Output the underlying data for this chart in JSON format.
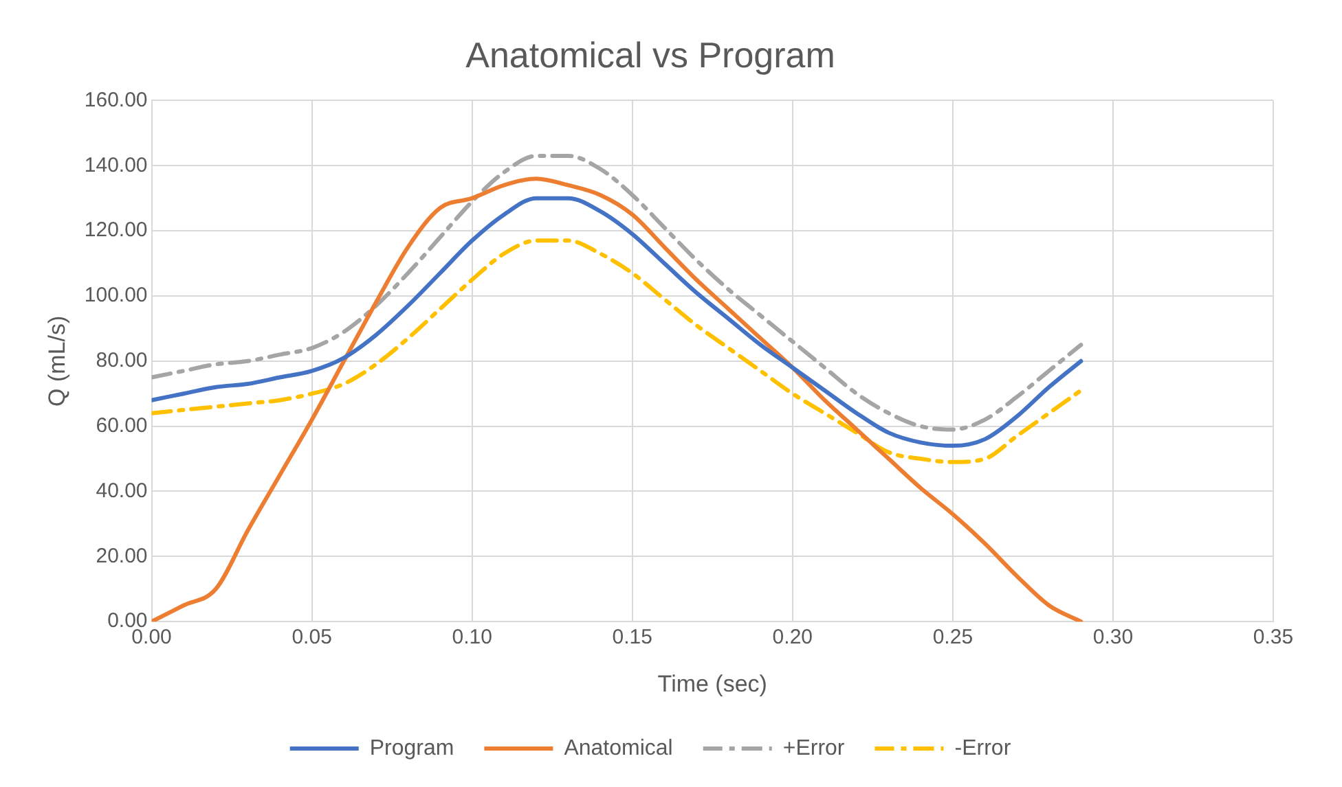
{
  "chart_data": {
    "type": "line",
    "title": "Anatomical vs Program",
    "xlabel": "Time (sec)",
    "ylabel": "Q (mL/s)",
    "x": [
      0,
      0.01,
      0.02,
      0.03,
      0.04,
      0.05,
      0.06,
      0.07,
      0.08,
      0.09,
      0.1,
      0.11,
      0.12,
      0.13,
      0.14,
      0.15,
      0.16,
      0.17,
      0.18,
      0.19,
      0.2,
      0.21,
      0.22,
      0.23,
      0.24,
      0.25,
      0.26,
      0.27,
      0.28,
      0.29
    ],
    "series": [
      {
        "name": "Program",
        "color": "#4472c4",
        "line_style": "solid",
        "values": [
          68,
          70,
          72,
          73,
          75,
          77,
          81,
          88,
          97,
          107,
          117,
          125,
          130,
          130,
          126,
          119,
          110,
          101,
          93,
          85,
          78,
          71,
          64,
          58,
          55,
          54,
          56,
          63,
          72,
          80
        ]
      },
      {
        "name": "Anatomical",
        "color": "#ed7d31",
        "line_style": "solid",
        "values": [
          0,
          5,
          10,
          28,
          45,
          62,
          80,
          98,
          115,
          127,
          130,
          134,
          136,
          134,
          131,
          125,
          115,
          105,
          96,
          87,
          78,
          68,
          59,
          50,
          41,
          33,
          24,
          14,
          5,
          0
        ]
      },
      {
        "name": "+Error",
        "color": "#a5a5a5",
        "line_style": "dashed",
        "values": [
          75,
          77,
          79,
          80,
          82,
          84,
          89,
          97,
          107,
          118,
          129,
          138,
          143,
          143,
          139,
          131,
          121,
          111,
          102,
          94,
          86,
          78,
          70,
          64,
          60,
          59,
          62,
          69,
          77,
          85
        ]
      },
      {
        "name": "-Error",
        "color": "#ffc000",
        "line_style": "dashed",
        "values": [
          64,
          65,
          66,
          67,
          68,
          70,
          73,
          79,
          87,
          96,
          105,
          113,
          117,
          117,
          113,
          107,
          99,
          91,
          84,
          77,
          70,
          64,
          58,
          52,
          50,
          49,
          50,
          57,
          64,
          71
        ]
      }
    ],
    "xlim": [
      0,
      0.35
    ],
    "xticks": [
      {
        "value": 0,
        "label": "0.00"
      },
      {
        "value": 0.05,
        "label": "0.05"
      },
      {
        "value": 0.1,
        "label": "0.10"
      },
      {
        "value": 0.15,
        "label": "0.15"
      },
      {
        "value": 0.2,
        "label": "0.20"
      },
      {
        "value": 0.25,
        "label": "0.25"
      },
      {
        "value": 0.3,
        "label": "0.30"
      },
      {
        "value": 0.35,
        "label": "0.35"
      }
    ],
    "ylim": [
      0,
      160
    ],
    "yticks": [
      {
        "value": 0,
        "label": "0.00"
      },
      {
        "value": 20,
        "label": "20.00"
      },
      {
        "value": 40,
        "label": "40.00"
      },
      {
        "value": 60,
        "label": "60.00"
      },
      {
        "value": 80,
        "label": "80.00"
      },
      {
        "value": 100,
        "label": "100.00"
      },
      {
        "value": 120,
        "label": "120.00"
      },
      {
        "value": 140,
        "label": "140.00"
      },
      {
        "value": 160,
        "label": "160.00"
      }
    ],
    "grid": true,
    "legend": "bottom",
    "marker": "none"
  }
}
